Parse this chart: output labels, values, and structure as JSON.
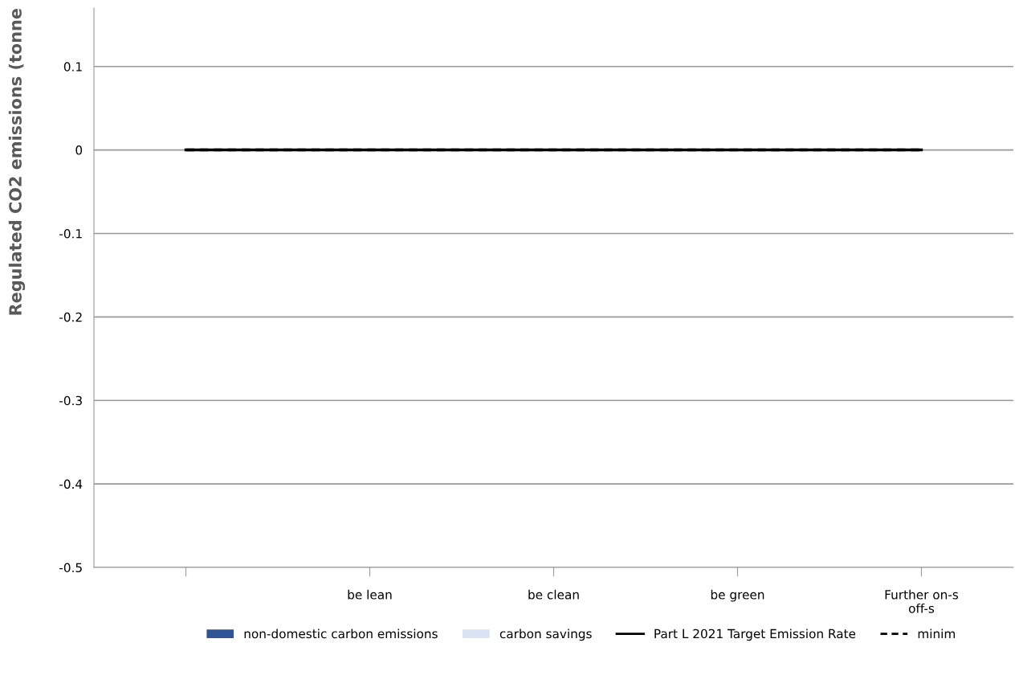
{
  "chart_data": {
    "type": "bar",
    "ylabel": "Regulated CO2 emissions (tonne",
    "categories": [
      null,
      "be lean",
      "be clean",
      "be green",
      "Further on-s\noff-s"
    ],
    "series": [
      {
        "name": "non-domestic carbon emissions",
        "color": "#2f5597",
        "values": [
          0,
          0,
          0,
          0,
          0
        ]
      },
      {
        "name": "carbon savings",
        "color": "#dae3f3",
        "values": [
          0,
          0,
          0,
          0,
          0
        ]
      },
      {
        "name": "Part L 2021 Target Emission Rate",
        "type": "line",
        "color": "#000000",
        "line_style": "solid",
        "values": [
          0,
          0,
          0,
          0,
          0
        ]
      },
      {
        "name": "minim",
        "type": "line",
        "color": "#000000",
        "line_style": "dashed",
        "values": [
          0,
          0,
          0,
          0,
          0
        ]
      }
    ],
    "ylim": [
      -0.5,
      0.17
    ],
    "yticks": [
      -0.5,
      -0.4,
      -0.3,
      -0.2,
      -0.1,
      0,
      0.1
    ],
    "grid": "y",
    "legend": "bottom"
  }
}
